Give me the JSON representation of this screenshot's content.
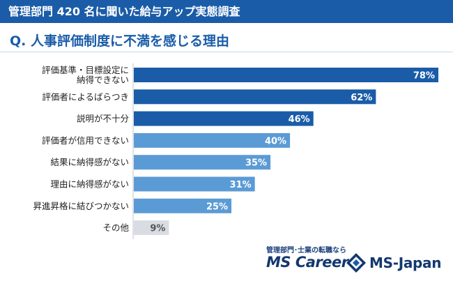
{
  "header": {
    "title": "管理部門 420 名に聞いた給与アップ実態調査"
  },
  "chart_data": {
    "type": "bar",
    "orientation": "horizontal",
    "title": "Q. 人事評価制度に不満を感じる理由",
    "categories": [
      [
        "評価基準・目標設定に",
        "納得できない"
      ],
      [
        "評価者によるばらつき"
      ],
      [
        "説明が不十分"
      ],
      [
        "評価者が信用できない"
      ],
      [
        "結果に納得感がない"
      ],
      [
        "理由に納得感がない"
      ],
      [
        "昇進昇格に結びつかない"
      ],
      [
        "その他"
      ]
    ],
    "values": [
      78,
      62,
      46,
      40,
      35,
      31,
      25,
      9
    ],
    "value_labels": [
      "78%",
      "62%",
      "46%",
      "40%",
      "35%",
      "31%",
      "25%",
      "9%"
    ],
    "colors": [
      "#1a5ca8",
      "#1a5ca8",
      "#1a5ca8",
      "#5b9bd5",
      "#5b9bd5",
      "#5b9bd5",
      "#5b9bd5",
      "#d9dde3"
    ],
    "label_colors": [
      "#ffffff",
      "#ffffff",
      "#ffffff",
      "#ffffff",
      "#ffffff",
      "#ffffff",
      "#ffffff",
      "#555555"
    ],
    "xlim": [
      0,
      78
    ],
    "grid": false,
    "legend": false
  },
  "brand": {
    "tagline": "管理部門･士業の転職なら",
    "mscareer": "MS Career",
    "msjapan": "MS-Japan"
  }
}
